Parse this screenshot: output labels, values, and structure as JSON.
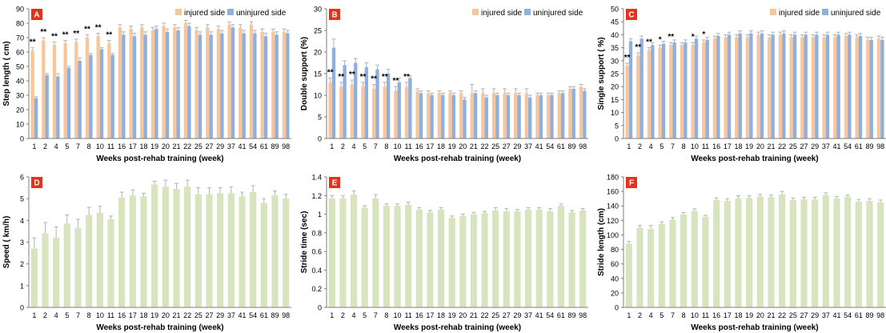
{
  "colors": {
    "injured": "#f7c69c",
    "uninjured": "#8fb0dc",
    "single": "#d7e4bd",
    "error": "#b3b3b3",
    "panel_letter_bg": "#e8301c",
    "axis": "#7f7f7f"
  },
  "chart_data": [
    {
      "panel": "A",
      "type": "bar",
      "xlabel": "Weeks post-rehab training (week)",
      "ylabel": "Step length ( cm)",
      "ylim": [
        0,
        90
      ],
      "yticks": [
        0,
        10,
        20,
        30,
        40,
        50,
        60,
        70,
        80,
        90
      ],
      "legend_position": "top-right",
      "categories": [
        "1",
        "2",
        "4",
        "5",
        "7",
        "8",
        "10",
        "11",
        "16",
        "17",
        "18",
        "19",
        "20",
        "21",
        "22",
        "25",
        "27",
        "29",
        "37",
        "41",
        "54",
        "61",
        "89",
        "98"
      ],
      "series": [
        {
          "name": "injured side",
          "color_key": "injured",
          "values": [
            61,
            68,
            65,
            66,
            67,
            70,
            71,
            66,
            77,
            76,
            77,
            75,
            78,
            77,
            80,
            75,
            77,
            76,
            79,
            77,
            79,
            74,
            74,
            74
          ],
          "errors": [
            2,
            2,
            2,
            2,
            2,
            2,
            2,
            2,
            2,
            2,
            2,
            2,
            2,
            2,
            2,
            2,
            2,
            2,
            2,
            2,
            2,
            2,
            2,
            2
          ]
        },
        {
          "name": "uninjured side",
          "color_key": "uninjured",
          "values": [
            28,
            44,
            43,
            49,
            54,
            58,
            62,
            58,
            72,
            71,
            72,
            76,
            74,
            75,
            78,
            72,
            72,
            73,
            77,
            73,
            73,
            71,
            72,
            73
          ],
          "errors": [
            1,
            1,
            2,
            1,
            2,
            1,
            1,
            1,
            2,
            2,
            2,
            2,
            2,
            2,
            2,
            2,
            2,
            2,
            2,
            2,
            2,
            2,
            2,
            2
          ]
        }
      ],
      "significance": [
        "**",
        "**",
        "**",
        "**",
        "**",
        "**",
        "**",
        "**",
        "",
        "",
        "",
        "",
        "",
        "",
        "",
        "",
        "",
        "",
        "",
        "",
        "",
        "",
        "",
        ""
      ]
    },
    {
      "panel": "B",
      "type": "bar",
      "xlabel": "Weeks post-rehab training (week)",
      "ylabel": "Double support (%)",
      "ylim": [
        0,
        30
      ],
      "yticks": [
        0,
        5,
        10,
        15,
        20,
        25,
        30
      ],
      "legend_position": "top-right",
      "categories": [
        "1",
        "2",
        "4",
        "5",
        "7",
        "8",
        "10",
        "11",
        "16",
        "17",
        "18",
        "19",
        "20",
        "21",
        "22",
        "25",
        "27",
        "29",
        "37",
        "41",
        "54",
        "61",
        "89",
        "98"
      ],
      "series": [
        {
          "name": "injured side",
          "color_key": "injured",
          "values": [
            13,
            12,
            12.5,
            12,
            11.5,
            12,
            11,
            12,
            11,
            10.5,
            10.5,
            10.5,
            10.5,
            10.5,
            10.5,
            10.5,
            10.5,
            10.5,
            10.5,
            10,
            10,
            10.5,
            11.5,
            12
          ],
          "errors": [
            1,
            1,
            1,
            1,
            1,
            1,
            1,
            1,
            0.5,
            0.5,
            0.5,
            0.5,
            0.5,
            2,
            1,
            1,
            1,
            1,
            1,
            0.5,
            0.5,
            0.5,
            0.5,
            0.5
          ]
        },
        {
          "name": "uninjured side",
          "color_key": "uninjured",
          "values": [
            21,
            17,
            17.5,
            16.5,
            16,
            15,
            13,
            14,
            10.5,
            10,
            10,
            10,
            9,
            10.5,
            9.5,
            10,
            10,
            10,
            9.5,
            10,
            10,
            10.5,
            11.5,
            11
          ],
          "errors": [
            2,
            1,
            1,
            1,
            1,
            1,
            1,
            0.5,
            0.5,
            0.5,
            0.5,
            0.5,
            0.5,
            0.5,
            0.5,
            0.5,
            0.5,
            0.5,
            0.5,
            0.5,
            0.5,
            0.5,
            0.5,
            0.5
          ]
        }
      ],
      "significance": [
        "**",
        "**",
        "**",
        "**",
        "**",
        "**",
        "**",
        "**",
        "",
        "",
        "",
        "",
        "",
        "",
        "",
        "",
        "",
        "",
        "",
        "",
        "",
        "",
        "",
        ""
      ]
    },
    {
      "panel": "C",
      "type": "bar",
      "xlabel": "Weeks post-rehab training (week)",
      "ylabel": "Single support ( %)",
      "ylim": [
        0,
        50
      ],
      "yticks": [
        0,
        5,
        10,
        15,
        20,
        25,
        30,
        35,
        40,
        45,
        50
      ],
      "legend_position": "top-right",
      "categories": [
        "1",
        "2",
        "4",
        "5",
        "7",
        "8",
        "10",
        "11",
        "16",
        "17",
        "18",
        "19",
        "20",
        "21",
        "22",
        "25",
        "27",
        "29",
        "37",
        "41",
        "54",
        "61",
        "89",
        "98"
      ],
      "series": [
        {
          "name": "injured side",
          "color_key": "injured",
          "values": [
            28,
            32,
            34,
            35,
            36,
            36,
            36,
            37,
            38.5,
            39,
            39,
            39,
            40,
            39,
            40,
            39,
            39,
            39,
            39,
            39,
            39.5,
            39,
            38,
            38.5
          ],
          "errors": [
            1,
            1,
            1,
            1,
            1,
            1,
            1,
            1,
            1,
            1,
            1,
            1,
            1,
            1,
            1,
            1,
            1,
            1,
            1,
            1,
            1,
            1,
            1,
            1
          ]
        },
        {
          "name": "uninjured side",
          "color_key": "uninjured",
          "values": [
            37.5,
            38.5,
            36,
            36.5,
            37,
            37,
            38.5,
            38,
            39.5,
            40,
            40.5,
            40.5,
            40.5,
            40,
            40.5,
            40,
            40,
            40,
            40,
            40,
            40,
            39.5,
            38,
            38
          ],
          "errors": [
            1,
            1,
            1,
            1,
            1,
            1,
            1,
            1,
            1,
            1,
            1,
            1,
            1,
            1,
            1,
            1,
            1,
            1,
            1,
            1,
            1,
            1,
            1,
            1
          ]
        }
      ],
      "significance": [
        "**",
        "**",
        "**",
        "*",
        "**",
        "",
        "*",
        "*",
        "",
        "",
        "",
        "",
        "",
        "",
        "",
        "",
        "",
        "",
        "",
        "",
        "",
        "",
        "",
        ""
      ]
    },
    {
      "panel": "D",
      "type": "bar",
      "xlabel": "Weeks post-rehab training (week)",
      "ylabel": "Speed ( km/h)",
      "ylim": [
        0,
        6
      ],
      "yticks": [
        0,
        1,
        2,
        3,
        4,
        5,
        6
      ],
      "categories": [
        "1",
        "2",
        "4",
        "5",
        "7",
        "8",
        "10",
        "11",
        "16",
        "17",
        "18",
        "19",
        "20",
        "21",
        "22",
        "25",
        "27",
        "29",
        "37",
        "41",
        "54",
        "61",
        "89",
        "98"
      ],
      "series": [
        {
          "name": "",
          "color_key": "single",
          "values": [
            2.7,
            3.4,
            3.2,
            3.85,
            3.65,
            4.25,
            4.35,
            4.05,
            5.05,
            5.15,
            5.1,
            5.65,
            5.55,
            5.45,
            5.55,
            5.2,
            5.2,
            5.25,
            5.25,
            5.1,
            5.3,
            4.8,
            5.15,
            5.0
          ],
          "errors": [
            0.5,
            0.5,
            0.5,
            0.4,
            0.4,
            0.35,
            0.3,
            0.15,
            0.25,
            0.25,
            0.15,
            0.15,
            0.3,
            0.25,
            0.3,
            0.3,
            0.3,
            0.25,
            0.3,
            0.2,
            0.3,
            0.2,
            0.2,
            0.2
          ]
        }
      ]
    },
    {
      "panel": "E",
      "type": "bar",
      "xlabel": "Weeks post-rehab training (week)",
      "ylabel": "Stride time (sec)",
      "ylim": [
        0,
        1.4
      ],
      "yticks": [
        "0",
        "0.2",
        "0.4",
        "0.6",
        "0.8",
        "1",
        "1.2",
        "1.4"
      ],
      "categories": [
        "1",
        "2",
        "4",
        "5",
        "7",
        "8",
        "10",
        "11",
        "16",
        "17",
        "18",
        "19",
        "20",
        "21",
        "22",
        "25",
        "27",
        "29",
        "37",
        "41",
        "54",
        "61",
        "89",
        "98"
      ],
      "series": [
        {
          "name": "",
          "color_key": "single",
          "values": [
            1.17,
            1.17,
            1.21,
            1.07,
            1.17,
            1.09,
            1.09,
            1.1,
            1.05,
            1.02,
            1.05,
            0.96,
            0.98,
            1.0,
            1.01,
            1.04,
            1.03,
            1.03,
            1.05,
            1.05,
            1.03,
            1.09,
            1.02,
            1.04
          ],
          "errors": [
            0.03,
            0.03,
            0.04,
            0.02,
            0.04,
            0.02,
            0.02,
            0.03,
            0.02,
            0.02,
            0.02,
            0.02,
            0.02,
            0.02,
            0.02,
            0.03,
            0.03,
            0.02,
            0.02,
            0.02,
            0.03,
            0.02,
            0.02,
            0.02
          ]
        }
      ]
    },
    {
      "panel": "F",
      "type": "bar",
      "xlabel": "Weeks post-rehab training (week)",
      "ylabel": "Stride length (cm)",
      "ylim": [
        0,
        180
      ],
      "yticks": [
        0,
        20,
        40,
        60,
        80,
        100,
        120,
        140,
        160,
        180
      ],
      "categories": [
        "1",
        "2",
        "4",
        "5",
        "7",
        "8",
        "10",
        "11",
        "16",
        "17",
        "18",
        "19",
        "20",
        "21",
        "22",
        "25",
        "27",
        "29",
        "37",
        "41",
        "54",
        "61",
        "89",
        "98"
      ],
      "series": [
        {
          "name": "",
          "color_key": "single",
          "values": [
            88,
            110,
            108,
            115,
            121,
            128,
            133,
            125,
            148,
            147,
            150,
            151,
            153,
            152,
            156,
            148,
            149,
            149,
            155,
            150,
            153,
            146,
            147,
            145
          ],
          "errors": [
            3,
            3,
            5,
            3,
            3,
            3,
            3,
            2,
            3,
            3,
            4,
            3,
            3,
            3,
            4,
            3,
            3,
            3,
            3,
            3,
            2,
            3,
            3,
            3
          ]
        }
      ]
    }
  ]
}
